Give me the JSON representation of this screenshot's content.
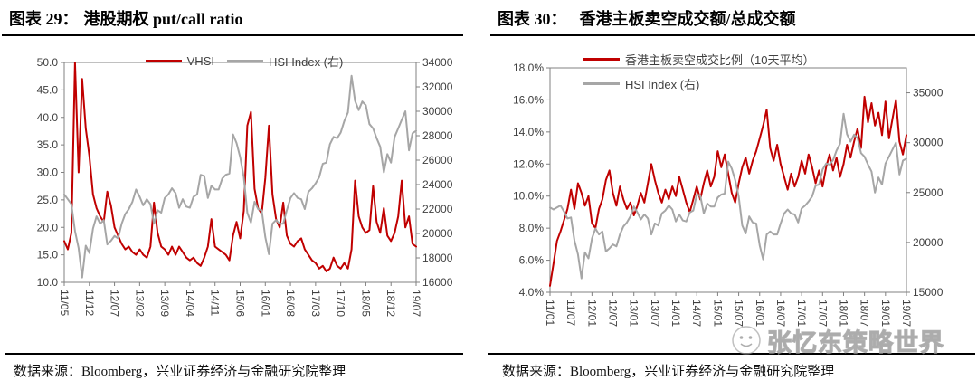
{
  "watermark": {
    "text": "张忆东策略世界"
  },
  "colors": {
    "red": "#C00000",
    "gray": "#A6A6A6"
  },
  "charts": [
    {
      "title_prefix": "图表 29：",
      "title": "港股期权 put/call ratio",
      "source": "数据来源：Bloomberg，兴业证券经济与金融研究院整理",
      "chart_data": {
        "type": "line",
        "grid": false,
        "legend_position": "top-center",
        "x_labels": [
          "11/05",
          "11/12",
          "12/07",
          "13/02",
          "13/09",
          "14/04",
          "14/11",
          "15/06",
          "16/01",
          "16/08",
          "17/03",
          "17/10",
          "18/05",
          "18/12",
          "19/07"
        ],
        "y_left": {
          "min": 10,
          "max": 50,
          "tick_values": [
            50,
            45,
            40,
            35,
            30,
            25,
            20,
            15,
            10
          ],
          "tick_labels": [
            "50.0",
            "45.0",
            "40.0",
            "35.0",
            "30.0",
            "25.0",
            "20.0",
            "15.0",
            "10.0"
          ]
        },
        "y_right": {
          "min": 16000,
          "max": 34000,
          "tick_values": [
            34000,
            32000,
            30000,
            28000,
            26000,
            24000,
            22000,
            20000,
            18000,
            16000
          ],
          "tick_labels": [
            "34000",
            "32000",
            "30000",
            "28000",
            "26000",
            "24000",
            "22000",
            "20000",
            "18000",
            "16000"
          ]
        },
        "series": [
          {
            "name": "VHSI",
            "axis": "left",
            "color": "#C00000",
            "values": [
              17.5,
              16,
              19,
              50,
              30,
              47,
              38,
              33,
              26,
              23.5,
              22,
              21,
              26.5,
              24,
              20,
              18.5,
              17,
              16,
              16.5,
              15.5,
              15,
              16,
              15,
              14.5,
              16.5,
              24.5,
              19,
              16.5,
              16,
              15,
              16.5,
              15,
              16.5,
              15.5,
              14.5,
              14,
              14.5,
              13.5,
              13,
              14.5,
              16.5,
              21.5,
              16.5,
              16,
              15.5,
              15,
              14,
              18.5,
              21,
              18,
              23,
              38.5,
              41,
              27,
              23.5,
              22.5,
              29,
              38.5,
              26,
              21.5,
              20,
              24.5,
              18.5,
              17,
              16.5,
              17.5,
              18,
              16,
              15,
              14,
              13.5,
              12.5,
              13,
              12,
              12.5,
              14.5,
              13,
              12.5,
              13.5,
              12.5,
              16,
              28.5,
              22,
              20,
              19,
              19.5,
              27.5,
              21,
              19,
              23.5,
              18.5,
              17.5,
              19,
              22,
              28.5,
              20,
              22,
              17,
              16.5
            ]
          },
          {
            "name": "HSI Index (右)",
            "axis": "right",
            "color": "#A6A6A6",
            "values": [
              23200,
              22800,
              22400,
              20200,
              18800,
              16400,
              19000,
              18400,
              20400,
              21400,
              20800,
              21100,
              19100,
              19400,
              19800,
              19600,
              20800,
              21600,
              22000,
              22600,
              23600,
              23000,
              22300,
              22800,
              22400,
              20800,
              21900,
              21700,
              22900,
              23200,
              23700,
              23300,
              22100,
              22800,
              22200,
              22100,
              23000,
              23200,
              24800,
              24700,
              22900,
              23900,
              23600,
              23600,
              24500,
              24800,
              24900,
              28100,
              27400,
              26250,
              24600,
              21700,
              20900,
              22600,
              22000,
              21900,
              19700,
              18300,
              20800,
              21100,
              20800,
              20800,
              21900,
              22900,
              23300,
              22900,
              22800,
              22000,
              23400,
              23700,
              24100,
              24600,
              25700,
              25800,
              27300,
              27900,
              27800,
              28250,
              29200,
              29900,
              32900,
              30850,
              30100,
              30800,
              30500,
              28950,
              28600,
              27800,
              27100,
              25000,
              26500,
              25800,
              27900,
              28600,
              29300,
              30000,
              26800,
              28200,
              28400
            ]
          }
        ]
      }
    },
    {
      "title_prefix": "图表 30：",
      "title": "香港主板卖空成交额/总成交额",
      "source": "数据来源：Bloomberg，兴业证券经济与金融研究院整理",
      "chart_data": {
        "type": "line",
        "grid": false,
        "legend_position": "top-left",
        "x_labels": [
          "11/01",
          "11/07",
          "12/01",
          "12/07",
          "13/01",
          "13/07",
          "14/01",
          "14/07",
          "15/01",
          "15/07",
          "16/01",
          "16/07",
          "17/01",
          "17/07",
          "18/01",
          "18/07",
          "19/01",
          "19/07"
        ],
        "y_left": {
          "min": 4,
          "max": 18,
          "tick_values": [
            18,
            16,
            14,
            12,
            10,
            8,
            6,
            4
          ],
          "tick_labels": [
            "18.0%",
            "16.0%",
            "14.0%",
            "12.0%",
            "10.0%",
            "8.0%",
            "6.0%",
            "4.0%"
          ]
        },
        "y_right": {
          "min": 15000,
          "max": 37500,
          "tick_values": [
            35000,
            30000,
            25000,
            20000,
            15000
          ],
          "tick_labels": [
            "35000",
            "30000",
            "25000",
            "20000",
            "15000"
          ]
        },
        "series": [
          {
            "name": "香港主板卖空成交比例（10天平均）",
            "axis": "left",
            "color": "#C00000",
            "values": [
              4.4,
              5.8,
              7.2,
              7.8,
              8.5,
              9.2,
              10.4,
              9.2,
              10.8,
              10.2,
              9.4,
              10.0,
              8.3,
              8.0,
              9.2,
              9.8,
              11.0,
              11.6,
              10.2,
              9.4,
              10.6,
              9.8,
              9.2,
              9.6,
              8.8,
              9.4,
              10.2,
              9.6,
              10.8,
              12.0,
              11.0,
              10.2,
              9.6,
              10.4,
              9.8,
              10.6,
              10.0,
              11.2,
              10.4,
              9.6,
              9.0,
              9.8,
              10.6,
              9.8,
              10.8,
              11.6,
              10.6,
              11.2,
              12.8,
              11.8,
              12.6,
              11.4,
              10.2,
              9.6,
              10.8,
              11.8,
              12.4,
              11.4,
              12.2,
              12.8,
              13.6,
              14.4,
              15.4,
              13.0,
              12.2,
              13.2,
              12.0,
              11.2,
              10.4,
              11.4,
              10.6,
              11.2,
              12.2,
              11.4,
              12.6,
              11.8,
              10.8,
              11.6,
              10.6,
              11.8,
              12.6,
              11.6,
              12.4,
              11.2,
              12.0,
              13.2,
              12.4,
              13.4,
              14.2,
              13.0,
              16.2,
              14.6,
              15.8,
              14.4,
              15.2,
              13.8,
              15.9,
              13.6,
              14.8,
              16.0,
              13.4,
              12.6,
              13.8
            ]
          },
          {
            "name": "HSI Index (右)",
            "axis": "right",
            "color": "#A6A6A6",
            "values": [
              23500,
              23300,
              23500,
              23700,
              23100,
              22400,
              22500,
              20200,
              18800,
              16400,
              19000,
              18400,
              20400,
              21400,
              20800,
              21100,
              19100,
              19400,
              19800,
              19600,
              20800,
              21600,
              22000,
              22600,
              23600,
              23000,
              22300,
              22800,
              22400,
              20800,
              21900,
              21700,
              22900,
              23200,
              23700,
              23300,
              22100,
              22800,
              22200,
              22100,
              23000,
              23200,
              24800,
              24700,
              22900,
              23900,
              23600,
              23600,
              24500,
              24800,
              24900,
              28100,
              27400,
              26250,
              24600,
              21700,
              20900,
              22600,
              22000,
              21900,
              19700,
              18300,
              20800,
              21100,
              20800,
              20800,
              21900,
              22900,
              23300,
              22900,
              22800,
              22000,
              23400,
              23700,
              24100,
              24600,
              25700,
              25800,
              27300,
              27900,
              27800,
              28250,
              29200,
              29900,
              32900,
              30850,
              30100,
              30800,
              30500,
              28950,
              28600,
              27800,
              27100,
              25000,
              26500,
              25800,
              27900,
              28600,
              29300,
              30000,
              26800,
              28200,
              28400
            ]
          }
        ]
      }
    }
  ]
}
